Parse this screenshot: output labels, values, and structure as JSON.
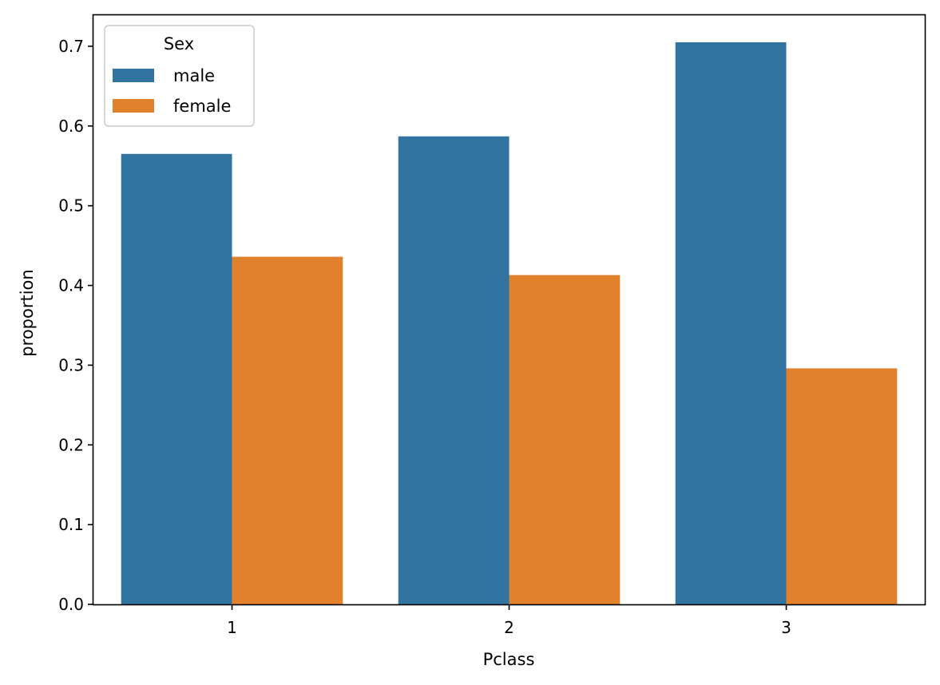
{
  "chart_data": {
    "type": "bar",
    "title": "",
    "xlabel": "Pclass",
    "ylabel": "proportion",
    "categories": [
      "1",
      "2",
      "3"
    ],
    "series": [
      {
        "name": "male",
        "values": [
          0.565,
          0.587,
          0.705
        ],
        "color": "#3274a1"
      },
      {
        "name": "female",
        "values": [
          0.436,
          0.413,
          0.296
        ],
        "color": "#e1812c"
      }
    ],
    "ylim": [
      0,
      0.74
    ],
    "yticks": [
      "0.0",
      "0.1",
      "0.2",
      "0.3",
      "0.4",
      "0.5",
      "0.6",
      "0.7"
    ],
    "grid": false,
    "legend": {
      "title": "Sex",
      "placement": "top-left"
    }
  }
}
